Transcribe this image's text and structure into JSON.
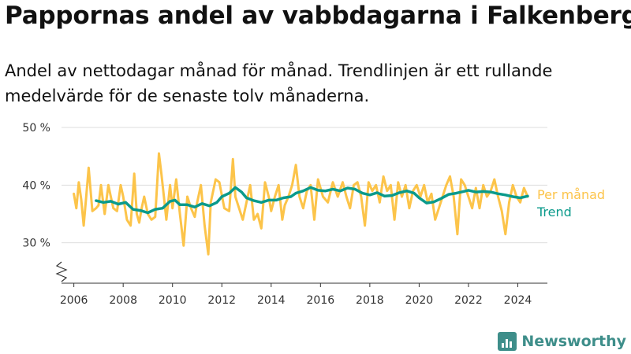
{
  "title": "Pappornas andel av vabbdagarna i Falkenberg",
  "subtitle": "Andel av nettodagar månad för månad. Trendlinjen är ett rullande medelvärde för de senaste tolv månaderna.",
  "brand": {
    "name": "Newsworthy",
    "icon": "newsworthy-logo-icon"
  },
  "colors": {
    "monthly": "#fcc44a",
    "trend": "#0a9a8b",
    "grid": "#dddddd",
    "axis": "#333333"
  },
  "chart_data": {
    "type": "line",
    "xlim": [
      2005.5,
      2025.2
    ],
    "ylim": [
      23,
      50
    ],
    "axis_break": true,
    "grid": true,
    "legend": "right",
    "x_ticks": [
      {
        "value": 2006,
        "label": "2006"
      },
      {
        "value": 2008,
        "label": "2008"
      },
      {
        "value": 2010,
        "label": "2010"
      },
      {
        "value": 2012,
        "label": "2012"
      },
      {
        "value": 2014,
        "label": "2014"
      },
      {
        "value": 2016,
        "label": "2016"
      },
      {
        "value": 2018,
        "label": "2018"
      },
      {
        "value": 2020,
        "label": "2020"
      },
      {
        "value": 2022,
        "label": "2022"
      },
      {
        "value": 2024,
        "label": "2024"
      }
    ],
    "y_ticks": [
      {
        "value": 30,
        "label": "30 %"
      },
      {
        "value": 40,
        "label": "40 %"
      },
      {
        "value": 50,
        "label": "50 %"
      }
    ],
    "series": [
      {
        "name": "Per månad",
        "x": [
          2006.0,
          2006.1,
          2006.2,
          2006.3,
          2006.4,
          2006.5,
          2006.6,
          2006.75,
          2006.9,
          2007.0,
          2007.1,
          2007.25,
          2007.4,
          2007.5,
          2007.6,
          2007.75,
          2007.9,
          2008.0,
          2008.15,
          2008.3,
          2008.45,
          2008.55,
          2008.65,
          2008.75,
          2008.85,
          2009.0,
          2009.15,
          2009.3,
          2009.45,
          2009.55,
          2009.65,
          2009.75,
          2009.9,
          2010.0,
          2010.15,
          2010.3,
          2010.45,
          2010.6,
          2010.75,
          2010.9,
          2011.0,
          2011.15,
          2011.3,
          2011.45,
          2011.55,
          2011.65,
          2011.75,
          2011.9,
          2012.1,
          2012.3,
          2012.45,
          2012.55,
          2012.7,
          2012.85,
          2013.0,
          2013.15,
          2013.3,
          2013.45,
          2013.6,
          2013.75,
          2013.9,
          2014.0,
          2014.15,
          2014.3,
          2014.45,
          2014.55,
          2014.7,
          2014.85,
          2015.0,
          2015.15,
          2015.3,
          2015.45,
          2015.6,
          2015.75,
          2015.9,
          2016.1,
          2016.3,
          2016.5,
          2016.7,
          2016.9,
          2017.05,
          2017.2,
          2017.35,
          2017.5,
          2017.65,
          2017.8,
          2017.95,
          2018.1,
          2018.25,
          2018.4,
          2018.55,
          2018.7,
          2018.85,
          2019.0,
          2019.15,
          2019.3,
          2019.45,
          2019.6,
          2019.75,
          2019.9,
          2020.05,
          2020.2,
          2020.35,
          2020.5,
          2020.65,
          2020.8,
          2020.95,
          2021.1,
          2021.25,
          2021.4,
          2021.55,
          2021.7,
          2021.85,
          2022.0,
          2022.15,
          2022.3,
          2022.45,
          2022.6,
          2022.75,
          2022.9,
          2023.05,
          2023.2,
          2023.35,
          2023.5,
          2023.65,
          2023.8,
          2023.95,
          2024.1,
          2024.25,
          2024.4
        ],
        "values": [
          38.5,
          36,
          40.5,
          37.5,
          33,
          38,
          43,
          35.5,
          36,
          36.5,
          40,
          35,
          40,
          38,
          36,
          35.5,
          40,
          38,
          34,
          33,
          42,
          35,
          33.5,
          36,
          38,
          35,
          34,
          34.5,
          45.5,
          42,
          38,
          34,
          40,
          36,
          41,
          35,
          29.5,
          38,
          36,
          34.5,
          37,
          40,
          33,
          28,
          37,
          39,
          41,
          40.5,
          36,
          35.5,
          44.5,
          38,
          36,
          34,
          37,
          40,
          34,
          35,
          32.5,
          40.5,
          38,
          35.5,
          38,
          40,
          34,
          36.5,
          38,
          40,
          43.5,
          38,
          36,
          39,
          40,
          34,
          41,
          38,
          37,
          40.5,
          38,
          40.5,
          38,
          36,
          40,
          40.5,
          38,
          33,
          40.5,
          39,
          40,
          37,
          41.5,
          39,
          40,
          34,
          40.5,
          38,
          40,
          36,
          39,
          40,
          38,
          40,
          37,
          38.5,
          34,
          36,
          38,
          40,
          41.5,
          38,
          31.5,
          41,
          40,
          38,
          36,
          39.5,
          36,
          40,
          38,
          39,
          41,
          38,
          35.5,
          31.5,
          37,
          40,
          38,
          37,
          39.5,
          38
        ]
      },
      {
        "name": "Trend",
        "x": [
          2006.9,
          2007.2,
          2007.5,
          2007.8,
          2008.1,
          2008.4,
          2008.7,
          2009.0,
          2009.3,
          2009.6,
          2009.9,
          2010.1,
          2010.3,
          2010.6,
          2010.9,
          2011.2,
          2011.5,
          2011.8,
          2012.0,
          2012.3,
          2012.55,
          2012.8,
          2013.0,
          2013.3,
          2013.6,
          2013.9,
          2014.2,
          2014.5,
          2014.8,
          2015.0,
          2015.3,
          2015.6,
          2015.9,
          2016.2,
          2016.5,
          2016.8,
          2017.1,
          2017.4,
          2017.7,
          2018.0,
          2018.3,
          2018.6,
          2018.9,
          2019.2,
          2019.5,
          2019.8,
          2020.0,
          2020.3,
          2020.6,
          2020.9,
          2021.2,
          2021.5,
          2021.8,
          2022.0,
          2022.3,
          2022.6,
          2022.9,
          2023.2,
          2023.5,
          2023.8,
          2024.1,
          2024.4
        ],
        "values": [
          37.3,
          37.0,
          37.2,
          36.7,
          37.0,
          35.8,
          35.6,
          35.2,
          35.8,
          36.0,
          37.2,
          37.4,
          36.6,
          36.6,
          36.2,
          36.8,
          36.4,
          37.0,
          38.0,
          38.6,
          39.6,
          38.8,
          37.8,
          37.3,
          37.0,
          37.4,
          37.4,
          37.8,
          38.0,
          38.6,
          39.0,
          39.6,
          39.1,
          39.0,
          39.3,
          39.0,
          39.5,
          39.3,
          38.6,
          38.3,
          38.7,
          38.1,
          38.2,
          38.7,
          39.0,
          38.6,
          37.8,
          36.9,
          37.1,
          37.7,
          38.4,
          38.6,
          38.9,
          39.1,
          38.8,
          38.9,
          38.8,
          38.5,
          38.3,
          38.0,
          37.8,
          38.1
        ]
      }
    ]
  }
}
